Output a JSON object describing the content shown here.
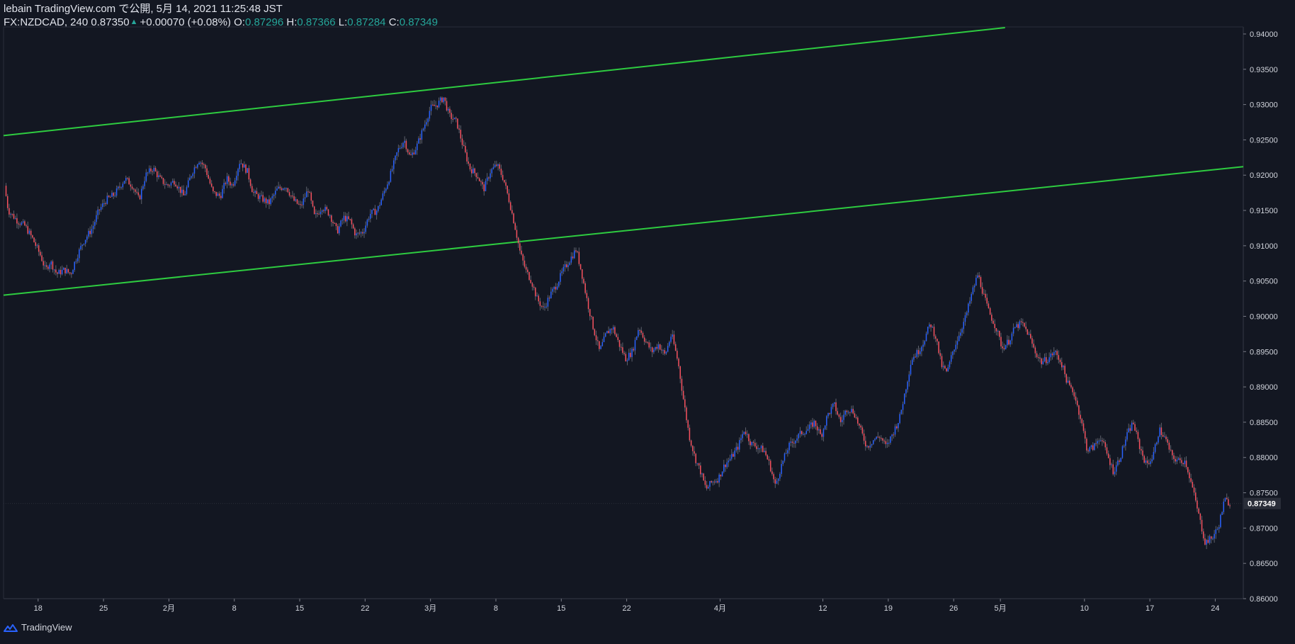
{
  "header": {
    "publish_line": "lebain TradingView.com で公開, 5月 14, 2021 11:25:48 JST",
    "symbol_line": "FX:NZDCAD, 240",
    "last_price": "0.87350",
    "change": "+0.00070 (+0.08%)",
    "o_label": "O:",
    "o_value": "0.87296",
    "h_label": "H:",
    "h_value": "0.87366",
    "l_label": "L:",
    "l_value": "0.87284",
    "c_label": "C:",
    "c_value": "0.87349"
  },
  "footer": {
    "brand": "TradingView"
  },
  "colors": {
    "background": "#131722",
    "up": "#2962ff",
    "down": "#f7525f",
    "channel": "#2ecc40",
    "grid": "#2a2e39",
    "text": "#d1d4dc"
  },
  "icons": {
    "logo": "tradingview-cloud-icon",
    "change_direction": "up-triangle-icon"
  },
  "chart_data": {
    "type": "candlestick",
    "symbol": "FX:NZDCAD",
    "interval": "240",
    "ylim": [
      0.86,
      0.941
    ],
    "y_ticks": [
      "0.94000",
      "0.93500",
      "0.93000",
      "0.92500",
      "0.92000",
      "0.91500",
      "0.91000",
      "0.90500",
      "0.90000",
      "0.89500",
      "0.89000",
      "0.88500",
      "0.88000",
      "0.87500",
      "0.87000",
      "0.86500",
      "0.86000"
    ],
    "y_tick_values": [
      0.94,
      0.935,
      0.93,
      0.925,
      0.92,
      0.915,
      0.91,
      0.905,
      0.9,
      0.895,
      0.89,
      0.885,
      0.88,
      0.875,
      0.87,
      0.865,
      0.86
    ],
    "x_ticks": [
      {
        "label": "18",
        "day": 0
      },
      {
        "label": "25",
        "day": 7
      },
      {
        "label": "2月",
        "day": 14
      },
      {
        "label": "8",
        "day": 21
      },
      {
        "label": "15",
        "day": 28
      },
      {
        "label": "22",
        "day": 35
      },
      {
        "label": "3月",
        "day": 42
      },
      {
        "label": "8",
        "day": 49
      },
      {
        "label": "15",
        "day": 56
      },
      {
        "label": "22",
        "day": 63
      },
      {
        "label": "4月",
        "day": 73
      },
      {
        "label": "12",
        "day": 84
      },
      {
        "label": "19",
        "day": 91
      },
      {
        "label": "26",
        "day": 98
      },
      {
        "label": "5月",
        "day": 103
      },
      {
        "label": "10",
        "day": 112
      },
      {
        "label": "17",
        "day": 119
      },
      {
        "label": "24",
        "day": 126
      }
    ],
    "x_domain_days": [
      -3.7,
      129
    ],
    "current_price": {
      "label": "0.87349",
      "value": 0.87349
    },
    "price_path": [
      [
        -3.6,
        0.9185
      ],
      [
        -3.2,
        0.915
      ],
      [
        -2.2,
        0.9135
      ],
      [
        -1.4,
        0.9128
      ],
      [
        -0.6,
        0.911
      ],
      [
        0.3,
        0.9085
      ],
      [
        0.8,
        0.9065
      ],
      [
        1.3,
        0.9078
      ],
      [
        2.0,
        0.906
      ],
      [
        2.8,
        0.9066
      ],
      [
        3.5,
        0.906
      ],
      [
        4.0,
        0.908
      ],
      [
        4.8,
        0.9105
      ],
      [
        5.8,
        0.9125
      ],
      [
        6.5,
        0.915
      ],
      [
        7.3,
        0.9165
      ],
      [
        8.2,
        0.9173
      ],
      [
        9.3,
        0.9195
      ],
      [
        10.1,
        0.9185
      ],
      [
        10.8,
        0.9165
      ],
      [
        11.5,
        0.92
      ],
      [
        12.3,
        0.921
      ],
      [
        13.0,
        0.9195
      ],
      [
        13.8,
        0.9185
      ],
      [
        14.6,
        0.9192
      ],
      [
        15.6,
        0.917
      ],
      [
        16.5,
        0.9205
      ],
      [
        17.2,
        0.9222
      ],
      [
        17.9,
        0.921
      ],
      [
        18.7,
        0.9175
      ],
      [
        19.5,
        0.917
      ],
      [
        20.2,
        0.9195
      ],
      [
        20.8,
        0.9185
      ],
      [
        21.6,
        0.922
      ],
      [
        22.4,
        0.9205
      ],
      [
        23.0,
        0.9175
      ],
      [
        23.8,
        0.9168
      ],
      [
        24.7,
        0.916
      ],
      [
        25.6,
        0.918
      ],
      [
        26.5,
        0.9185
      ],
      [
        27.3,
        0.9165
      ],
      [
        28.1,
        0.9155
      ],
      [
        28.9,
        0.918
      ],
      [
        29.6,
        0.914
      ],
      [
        30.4,
        0.9155
      ],
      [
        31.2,
        0.9145
      ],
      [
        32.0,
        0.912
      ],
      [
        32.7,
        0.914
      ],
      [
        33.4,
        0.9135
      ],
      [
        34.0,
        0.9115
      ],
      [
        34.8,
        0.912
      ],
      [
        35.5,
        0.9145
      ],
      [
        36.3,
        0.915
      ],
      [
        37.0,
        0.9175
      ],
      [
        37.7,
        0.92
      ],
      [
        38.5,
        0.9235
      ],
      [
        39.2,
        0.925
      ],
      [
        39.8,
        0.9225
      ],
      [
        40.5,
        0.924
      ],
      [
        41.2,
        0.9265
      ],
      [
        42.0,
        0.9295
      ],
      [
        42.7,
        0.93
      ],
      [
        43.4,
        0.931
      ],
      [
        44.0,
        0.9285
      ],
      [
        44.8,
        0.9275
      ],
      [
        45.5,
        0.924
      ],
      [
        46.2,
        0.921
      ],
      [
        47.0,
        0.92
      ],
      [
        47.7,
        0.918
      ],
      [
        48.4,
        0.9205
      ],
      [
        49.1,
        0.9215
      ],
      [
        49.8,
        0.9195
      ],
      [
        50.4,
        0.9165
      ],
      [
        51.0,
        0.913
      ],
      [
        51.6,
        0.909
      ],
      [
        52.2,
        0.9065
      ],
      [
        52.8,
        0.905
      ],
      [
        53.4,
        0.9025
      ],
      [
        54.1,
        0.901
      ],
      [
        54.8,
        0.903
      ],
      [
        55.5,
        0.9045
      ],
      [
        56.2,
        0.9065
      ],
      [
        56.9,
        0.908
      ],
      [
        57.6,
        0.9095
      ],
      [
        58.2,
        0.906
      ],
      [
        58.8,
        0.902
      ],
      [
        59.4,
        0.8985
      ],
      [
        60.1,
        0.895
      ],
      [
        60.8,
        0.8975
      ],
      [
        61.5,
        0.8985
      ],
      [
        62.2,
        0.896
      ],
      [
        62.9,
        0.894
      ],
      [
        63.6,
        0.895
      ],
      [
        64.3,
        0.8985
      ],
      [
        65.0,
        0.8965
      ],
      [
        65.7,
        0.895
      ],
      [
        66.4,
        0.896
      ],
      [
        67.1,
        0.8945
      ],
      [
        67.8,
        0.8975
      ],
      [
        68.5,
        0.8935
      ],
      [
        69.1,
        0.888
      ],
      [
        69.7,
        0.883
      ],
      [
        70.3,
        0.88
      ],
      [
        70.9,
        0.878
      ],
      [
        71.5,
        0.8755
      ],
      [
        72.1,
        0.8765
      ],
      [
        72.8,
        0.877
      ],
      [
        73.5,
        0.879
      ],
      [
        74.2,
        0.88
      ],
      [
        74.9,
        0.8815
      ],
      [
        75.6,
        0.884
      ],
      [
        76.3,
        0.882
      ],
      [
        77.0,
        0.8815
      ],
      [
        77.7,
        0.881
      ],
      [
        78.3,
        0.879
      ],
      [
        78.9,
        0.876
      ],
      [
        79.6,
        0.879
      ],
      [
        80.3,
        0.8815
      ],
      [
        81.0,
        0.8825
      ],
      [
        81.7,
        0.8835
      ],
      [
        82.4,
        0.884
      ],
      [
        83.1,
        0.885
      ],
      [
        83.8,
        0.883
      ],
      [
        84.5,
        0.886
      ],
      [
        85.2,
        0.8875
      ],
      [
        85.9,
        0.885
      ],
      [
        86.6,
        0.887
      ],
      [
        87.3,
        0.8865
      ],
      [
        88.0,
        0.884
      ],
      [
        88.7,
        0.8815
      ],
      [
        89.4,
        0.8825
      ],
      [
        90.1,
        0.883
      ],
      [
        90.8,
        0.8815
      ],
      [
        91.5,
        0.8835
      ],
      [
        92.2,
        0.8855
      ],
      [
        92.9,
        0.89
      ],
      [
        93.5,
        0.894
      ],
      [
        94.2,
        0.895
      ],
      [
        94.8,
        0.8965
      ],
      [
        95.5,
        0.899
      ],
      [
        96.1,
        0.897
      ],
      [
        96.7,
        0.893
      ],
      [
        97.3,
        0.892
      ],
      [
        97.9,
        0.895
      ],
      [
        98.6,
        0.8975
      ],
      [
        99.3,
        0.9
      ],
      [
        100.0,
        0.9035
      ],
      [
        100.6,
        0.906
      ],
      [
        101.2,
        0.903
      ],
      [
        101.8,
        0.9005
      ],
      [
        102.5,
        0.8985
      ],
      [
        103.2,
        0.8955
      ],
      [
        103.9,
        0.8965
      ],
      [
        104.6,
        0.8985
      ],
      [
        105.3,
        0.899
      ],
      [
        106.0,
        0.8975
      ],
      [
        106.7,
        0.895
      ],
      [
        107.4,
        0.8935
      ],
      [
        108.1,
        0.894
      ],
      [
        108.8,
        0.895
      ],
      [
        109.5,
        0.8935
      ],
      [
        110.2,
        0.8905
      ],
      [
        110.9,
        0.889
      ],
      [
        111.6,
        0.8855
      ],
      [
        112.3,
        0.881
      ],
      [
        113.0,
        0.8815
      ],
      [
        113.7,
        0.883
      ],
      [
        114.4,
        0.8805
      ],
      [
        115.1,
        0.878
      ],
      [
        115.8,
        0.88
      ],
      [
        116.5,
        0.883
      ],
      [
        117.2,
        0.885
      ],
      [
        117.9,
        0.8815
      ],
      [
        118.6,
        0.879
      ],
      [
        119.3,
        0.88
      ],
      [
        120.0,
        0.884
      ],
      [
        120.7,
        0.8825
      ],
      [
        121.4,
        0.88
      ],
      [
        122.1,
        0.8795
      ],
      [
        122.8,
        0.8795
      ],
      [
        123.5,
        0.876
      ],
      [
        124.2,
        0.872
      ],
      [
        124.9,
        0.868
      ],
      [
        125.6,
        0.8685
      ],
      [
        126.3,
        0.87
      ],
      [
        127.0,
        0.874
      ],
      [
        127.6,
        0.8735
      ]
    ],
    "channel_lines": [
      {
        "from": [
          -3.7,
          0.9256
        ],
        "to": [
          103.5,
          0.9409
        ]
      },
      {
        "from": [
          -3.7,
          0.903
        ],
        "to": [
          129,
          0.9212
        ]
      }
    ]
  }
}
